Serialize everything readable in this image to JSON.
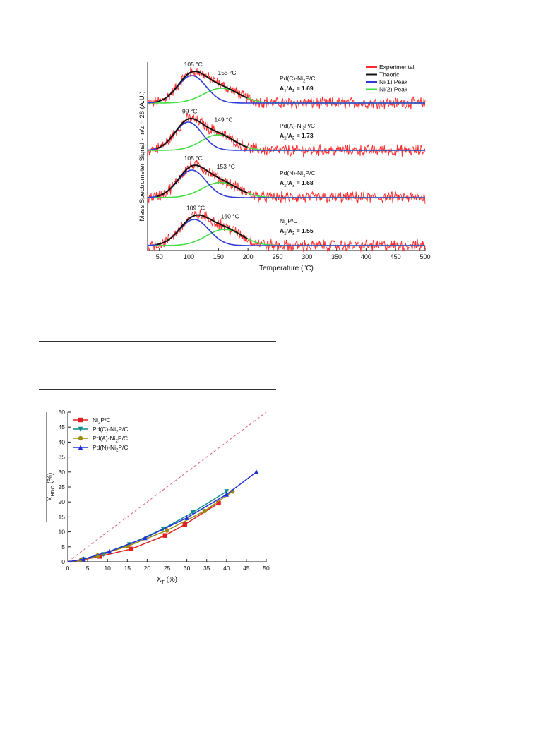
{
  "tpd_chart": {
    "type": "line",
    "ylabel": "Mass Spectrometer Signal - m/z = 28 (A.U.)",
    "xlabel": "Temperature (°C)",
    "xlim": [
      30,
      500
    ],
    "xticks": [
      50,
      100,
      150,
      200,
      250,
      300,
      350,
      400,
      450,
      500
    ],
    "legend_position": "top-right",
    "legend": [
      {
        "label": "Experimental",
        "color": "#ff2a2a"
      },
      {
        "label": "Theoric",
        "color": "#111111"
      },
      {
        "label": "Ni(1) Peak",
        "color": "#2e3bd6"
      },
      {
        "label": "Ni(2) Peak",
        "color": "#44dd44"
      }
    ],
    "panels": [
      {
        "sample": "Pd(C)-Ni",
        "sub": "2",
        "tail": "P/C",
        "ratio": "A",
        "ratio_rest": " = 1.69",
        "peak1_label": "105 °C",
        "peak2_label": "155 °C",
        "peak1": {
          "center": 105,
          "width": 24,
          "amp": 0.78
        },
        "peak2": {
          "center": 155,
          "width": 30,
          "amp": 0.42
        }
      },
      {
        "sample": "Pd(A)-Ni",
        "sub": "2",
        "tail": "P/C",
        "ratio": "A",
        "ratio_rest": " = 1.73",
        "peak1_label": "99 °C",
        "peak2_label": "149 °C",
        "peak1": {
          "center": 99,
          "width": 23,
          "amp": 0.8
        },
        "peak2": {
          "center": 149,
          "width": 28,
          "amp": 0.44
        }
      },
      {
        "sample": "Pd(N)-Ni",
        "sub": "2",
        "tail": "P/C",
        "ratio": "A",
        "ratio_rest": " = 1.68",
        "peak1_label": "105 °C",
        "peak2_label": "153 °C",
        "peak1": {
          "center": 105,
          "width": 24,
          "amp": 0.78
        },
        "peak2": {
          "center": 153,
          "width": 30,
          "amp": 0.43
        }
      },
      {
        "sample": "Ni",
        "sub": "2",
        "tail": "P/C",
        "ratio": "A",
        "ratio_rest": " = 1.55",
        "peak1_label": "109 °C",
        "peak2_label": "160 °C",
        "peak1": {
          "center": 109,
          "width": 25,
          "amp": 0.74
        },
        "peak2": {
          "center": 160,
          "width": 30,
          "amp": 0.46
        }
      }
    ]
  },
  "chart_data": {
    "type": "scatter",
    "xlabel": "X",
    "xlabel_sub": "T",
    "xlabel_unit": " (%)",
    "ylabel": "X",
    "ylabel_sub": "HDO",
    "ylabel_unit": " (%)",
    "xlim": [
      0,
      50
    ],
    "ylim": [
      0,
      50
    ],
    "xticks": [
      0,
      5,
      10,
      15,
      20,
      25,
      30,
      35,
      40,
      45,
      50
    ],
    "yticks": [
      0,
      5,
      10,
      15,
      20,
      25,
      30,
      35,
      40,
      45,
      50
    ],
    "legend_position": "top-left",
    "reference_line": {
      "style": "dashed",
      "color": "#e0607a",
      "x": [
        0,
        50
      ],
      "y": [
        0,
        50
      ]
    },
    "series": [
      {
        "label": "Ni",
        "label_sub": "2",
        "label_tail": "P/C",
        "color": "#e02020",
        "marker": "square",
        "x": [
          0,
          3.5,
          8,
          16,
          24.5,
          29.5,
          38
        ],
        "y": [
          0,
          0.6,
          1.8,
          4.3,
          8.8,
          12.5,
          19.6
        ]
      },
      {
        "label": "Pd(C)-Ni",
        "label_sub": "2",
        "label_tail": "P/C",
        "color": "#108c8c",
        "marker": "triangle-down",
        "x": [
          0,
          4,
          9,
          15.5,
          24,
          31.5,
          40
        ],
        "y": [
          0,
          0.8,
          2.5,
          5.8,
          11,
          16.5,
          23.5
        ]
      },
      {
        "label": "Pd(A)-Ni",
        "label_sub": "2",
        "label_tail": "P/C",
        "color": "#9a8a10",
        "marker": "circle",
        "x": [
          0,
          3.5,
          7.5,
          15,
          25,
          34.5,
          41.5
        ],
        "y": [
          0,
          0.6,
          2.1,
          5.2,
          10.5,
          17,
          23.5
        ]
      },
      {
        "label": "Pd(N)-Ni",
        "label_sub": "2",
        "label_tail": "P/C",
        "color": "#2030d8",
        "marker": "triangle-up",
        "x": [
          0,
          4,
          10.5,
          19.5,
          30,
          40,
          47.5
        ],
        "y": [
          0,
          0.9,
          3.5,
          8,
          14.7,
          22.5,
          30
        ]
      }
    ]
  }
}
